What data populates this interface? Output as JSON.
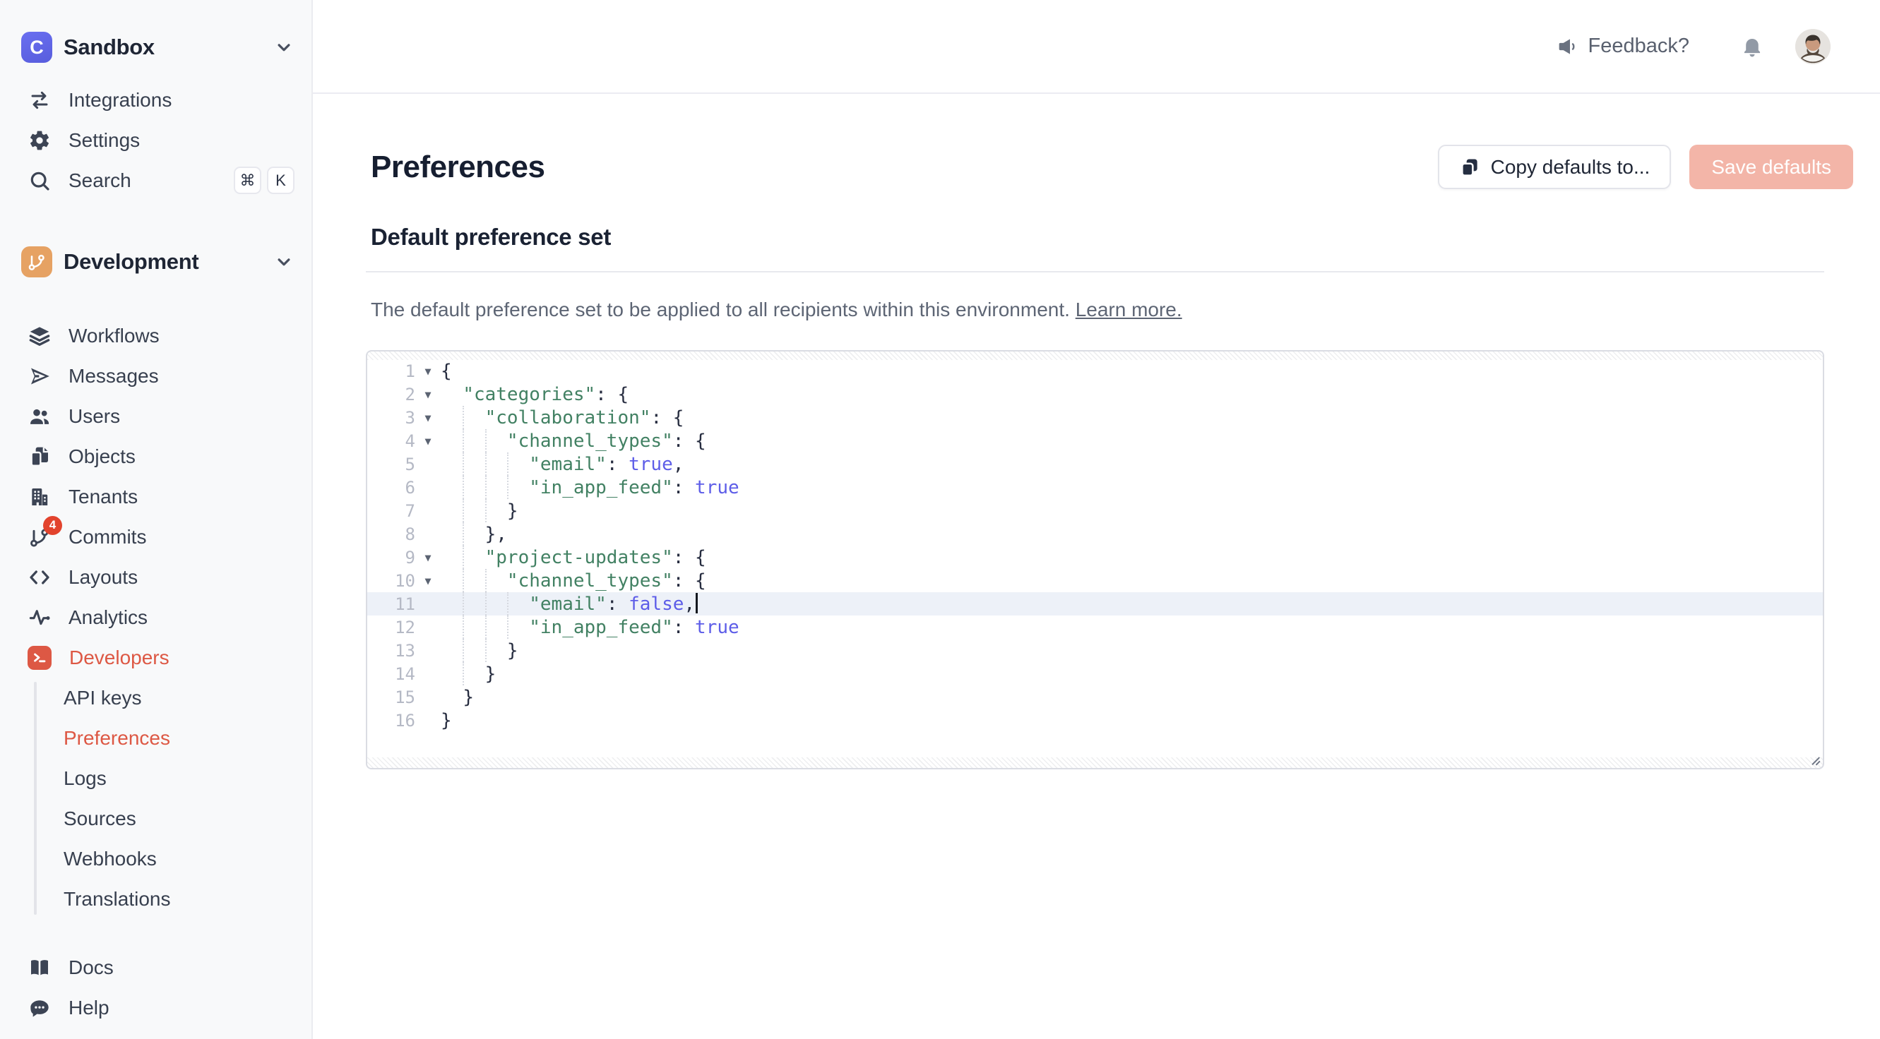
{
  "app": {
    "workspace": "Sandbox",
    "workspace_logo_letter": "C",
    "environment": "Development"
  },
  "colors": {
    "accent_orange": "#DD5844",
    "badge_red": "#E2432D",
    "env_orange": "#E6A263",
    "logo_indigo": "#6065E8",
    "save_disabled_pink": "#F3B5A8",
    "code_key_green": "#428163",
    "code_bool_indigo": "#5D5DE8",
    "active_line_bg": "#EDF1F8",
    "sidebar_bg": "#F8F9FA"
  },
  "sidebar": {
    "top_items": [
      {
        "label": "Integrations",
        "icon": "integrations"
      },
      {
        "label": "Settings",
        "icon": "settings"
      },
      {
        "label": "Search",
        "icon": "search",
        "shortcut": [
          "⌘",
          "K"
        ]
      }
    ],
    "dev_items": [
      {
        "label": "Workflows",
        "icon": "workflows"
      },
      {
        "label": "Messages",
        "icon": "messages"
      },
      {
        "label": "Users",
        "icon": "users"
      },
      {
        "label": "Objects",
        "icon": "objects"
      },
      {
        "label": "Tenants",
        "icon": "tenants"
      },
      {
        "label": "Commits",
        "icon": "commits",
        "badge": "4"
      },
      {
        "label": "Layouts",
        "icon": "layouts"
      },
      {
        "label": "Analytics",
        "icon": "analytics"
      },
      {
        "label": "Developers",
        "icon": "terminal",
        "accent": true,
        "icon_box": true
      }
    ],
    "developer_subitems": [
      {
        "label": "API keys"
      },
      {
        "label": "Preferences",
        "active": true
      },
      {
        "label": "Logs"
      },
      {
        "label": "Sources"
      },
      {
        "label": "Webhooks"
      },
      {
        "label": "Translations"
      }
    ],
    "bottom_items": [
      {
        "label": "Docs",
        "icon": "docs"
      },
      {
        "label": "Help",
        "icon": "help"
      }
    ]
  },
  "topbar": {
    "feedback_label": "Feedback?"
  },
  "page": {
    "title": "Preferences",
    "copy_button": "Copy defaults to...",
    "save_button": "Save defaults",
    "section_title": "Default preference set",
    "description": "The default preference set to be applied to all recipients within this environment. ",
    "learn_more": "Learn more."
  },
  "editor": {
    "active_line": 11,
    "lines": [
      {
        "n": 1,
        "fold": true,
        "indent": 0,
        "tokens": [
          {
            "s": "p",
            "v": "{"
          }
        ]
      },
      {
        "n": 2,
        "fold": true,
        "indent": 2,
        "tokens": [
          {
            "s": "key",
            "v": "\"categories\""
          },
          {
            "s": "p",
            "v": ": {"
          }
        ]
      },
      {
        "n": 3,
        "fold": true,
        "indent": 4,
        "tokens": [
          {
            "s": "key",
            "v": "\"collaboration\""
          },
          {
            "s": "p",
            "v": ": {"
          }
        ]
      },
      {
        "n": 4,
        "fold": true,
        "indent": 6,
        "tokens": [
          {
            "s": "key",
            "v": "\"channel_types\""
          },
          {
            "s": "p",
            "v": ": {"
          }
        ]
      },
      {
        "n": 5,
        "fold": false,
        "indent": 8,
        "tokens": [
          {
            "s": "key",
            "v": "\"email\""
          },
          {
            "s": "p",
            "v": ": "
          },
          {
            "s": "bool",
            "v": "true"
          },
          {
            "s": "p",
            "v": ","
          }
        ]
      },
      {
        "n": 6,
        "fold": false,
        "indent": 8,
        "tokens": [
          {
            "s": "key",
            "v": "\"in_app_feed\""
          },
          {
            "s": "p",
            "v": ": "
          },
          {
            "s": "bool",
            "v": "true"
          }
        ]
      },
      {
        "n": 7,
        "fold": false,
        "indent": 6,
        "tokens": [
          {
            "s": "p",
            "v": "}"
          }
        ]
      },
      {
        "n": 8,
        "fold": false,
        "indent": 4,
        "tokens": [
          {
            "s": "p",
            "v": "},"
          }
        ]
      },
      {
        "n": 9,
        "fold": true,
        "indent": 4,
        "tokens": [
          {
            "s": "key",
            "v": "\"project-updates\""
          },
          {
            "s": "p",
            "v": ": {"
          }
        ]
      },
      {
        "n": 10,
        "fold": true,
        "indent": 6,
        "tokens": [
          {
            "s": "key",
            "v": "\"channel_types\""
          },
          {
            "s": "p",
            "v": ": {"
          }
        ]
      },
      {
        "n": 11,
        "fold": false,
        "indent": 8,
        "active": true,
        "tokens": [
          {
            "s": "key",
            "v": "\"email\""
          },
          {
            "s": "p",
            "v": ": "
          },
          {
            "s": "bool",
            "v": "false"
          },
          {
            "s": "p",
            "v": ",",
            "cursor": true
          }
        ]
      },
      {
        "n": 12,
        "fold": false,
        "indent": 8,
        "tokens": [
          {
            "s": "key",
            "v": "\"in_app_feed\""
          },
          {
            "s": "p",
            "v": ": "
          },
          {
            "s": "bool",
            "v": "true"
          }
        ]
      },
      {
        "n": 13,
        "fold": false,
        "indent": 6,
        "tokens": [
          {
            "s": "p",
            "v": "}"
          }
        ]
      },
      {
        "n": 14,
        "fold": false,
        "indent": 4,
        "tokens": [
          {
            "s": "p",
            "v": "}"
          }
        ]
      },
      {
        "n": 15,
        "fold": false,
        "indent": 2,
        "tokens": [
          {
            "s": "p",
            "v": "}"
          }
        ]
      },
      {
        "n": 16,
        "fold": false,
        "indent": 0,
        "tokens": [
          {
            "s": "p",
            "v": "}"
          }
        ]
      }
    ]
  }
}
